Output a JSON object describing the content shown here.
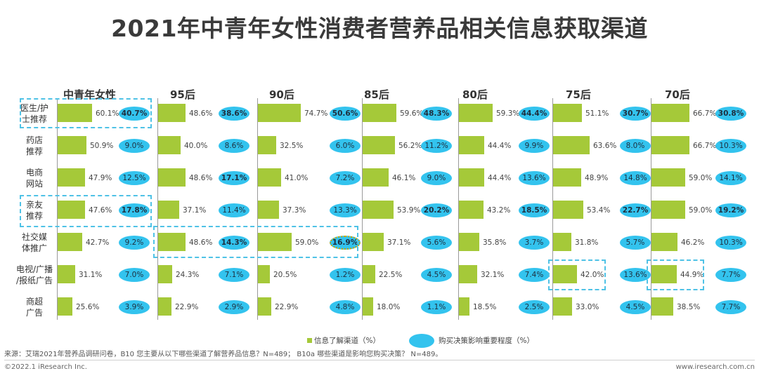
{
  "title": "2021年中青年女性消费者营养品相关信息获取渠道",
  "chart_data": {
    "type": "bar",
    "groups": [
      "中青年女性",
      "95后",
      "90后",
      "85后",
      "80后",
      "75后",
      "70后"
    ],
    "categories": [
      "医生/护\n士推荐",
      "药店\n推荐",
      "电商\n网站",
      "亲友\n推荐",
      "社交媒\n体推广",
      "电视/广播\n/报纸广告",
      "商超\n广告"
    ],
    "series": [
      {
        "name": "信息了解渠道（%）",
        "color": "#a5c939",
        "values": [
          [
            60.1,
            50.9,
            47.9,
            47.6,
            42.7,
            31.1,
            25.6
          ],
          [
            48.6,
            40.0,
            48.6,
            37.1,
            48.6,
            24.3,
            22.9
          ],
          [
            74.7,
            32.5,
            41.0,
            37.3,
            59.0,
            20.5,
            22.9
          ],
          [
            59.6,
            56.2,
            46.1,
            53.9,
            37.1,
            22.5,
            18.0
          ],
          [
            59.3,
            44.4,
            44.4,
            43.2,
            35.8,
            32.1,
            18.5
          ],
          [
            51.1,
            63.6,
            48.9,
            53.4,
            31.8,
            42.0,
            33.0
          ],
          [
            66.7,
            66.7,
            59.0,
            59.0,
            46.2,
            44.9,
            38.5
          ]
        ]
      },
      {
        "name": "购买决策影响重要程度（%）",
        "color": "#33c3ee",
        "values": [
          [
            40.7,
            9.0,
            12.5,
            17.8,
            9.2,
            7.0,
            3.9
          ],
          [
            38.6,
            8.6,
            17.1,
            11.4,
            14.3,
            7.1,
            2.9
          ],
          [
            50.6,
            6.0,
            7.2,
            13.3,
            16.9,
            1.2,
            4.8
          ],
          [
            48.3,
            11.2,
            9.0,
            20.2,
            5.6,
            4.5,
            1.1
          ],
          [
            44.4,
            9.9,
            13.6,
            18.5,
            3.7,
            7.4,
            2.5
          ],
          [
            30.7,
            8.0,
            14.8,
            22.7,
            5.7,
            13.6,
            4.5
          ],
          [
            30.8,
            10.3,
            14.1,
            19.2,
            10.3,
            7.7,
            7.7
          ]
        ]
      }
    ],
    "bold_decision": [
      [
        true,
        false,
        false,
        true,
        false,
        false,
        false
      ],
      [
        true,
        false,
        true,
        false,
        true,
        false,
        false
      ],
      [
        true,
        false,
        false,
        false,
        true,
        false,
        false
      ],
      [
        true,
        false,
        false,
        true,
        false,
        false,
        false
      ],
      [
        true,
        false,
        false,
        true,
        false,
        false,
        false
      ],
      [
        true,
        false,
        false,
        true,
        false,
        false,
        false
      ],
      [
        true,
        false,
        false,
        true,
        false,
        false,
        false
      ]
    ]
  },
  "legend": {
    "info_label": "信息了解渠道（%）",
    "decision_label": "购买决策影响重要程度（%）"
  },
  "source": "来源：艾瑞2021年营养品调研问卷，B10 您主要从以下哪些渠道了解营养品信息？N=489； B10a 哪些渠道是影响您购买决策？ N=489。",
  "footer": {
    "copyright": "©2022.1 iResearch Inc.",
    "website": "www.iresearch.com.cn"
  }
}
